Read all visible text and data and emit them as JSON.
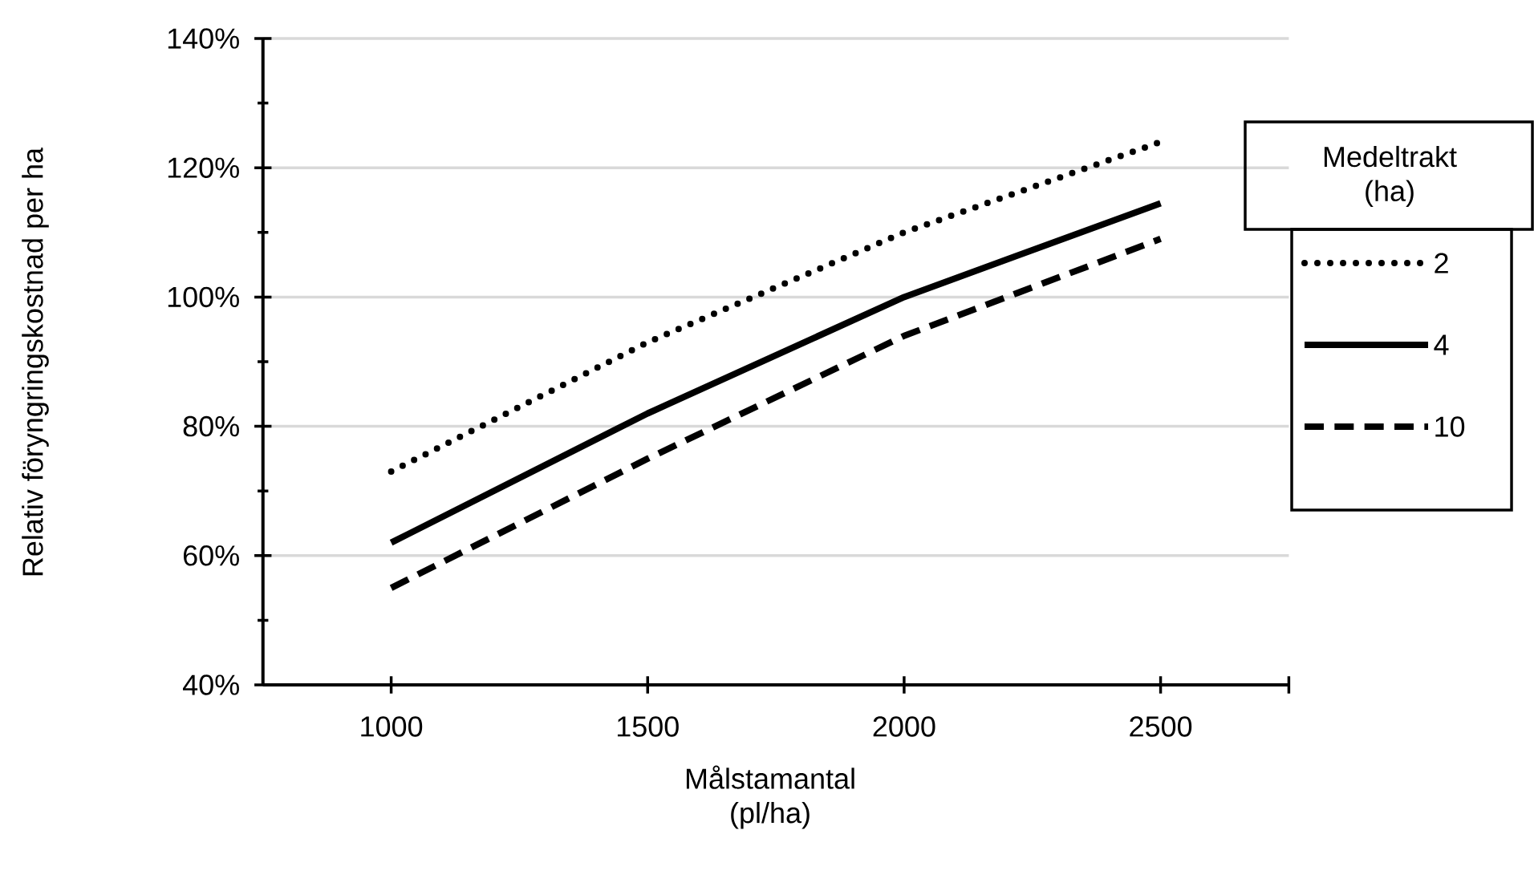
{
  "chart_data": {
    "type": "line",
    "xlabel": "Målstamantal (pl/ha)",
    "ylabel": "Relativ föryngringskostnad per ha",
    "legend_title": "Medeltrakt (ha)",
    "legend": "right",
    "grid": "y",
    "marker": "none",
    "x": [
      1000,
      1500,
      2000,
      2500
    ],
    "xlim": [
      750,
      2750
    ],
    "xticks": [
      1000,
      1500,
      2000,
      2500,
      {
        "value": 2750,
        "label": null
      }
    ],
    "ylim": [
      40,
      140
    ],
    "yticks": [
      {
        "value": 40,
        "label": "40%"
      },
      {
        "value": 50,
        "label": null
      },
      {
        "value": 60,
        "label": "60%"
      },
      {
        "value": 70,
        "label": null
      },
      {
        "value": 80,
        "label": "80%"
      },
      {
        "value": 90,
        "label": null
      },
      {
        "value": 100,
        "label": "100%"
      },
      {
        "value": 110,
        "label": null
      },
      {
        "value": 120,
        "label": "120%"
      },
      {
        "value": 130,
        "label": null
      },
      {
        "value": 140,
        "label": "140%"
      }
    ],
    "series": [
      {
        "name": "2",
        "color": "#000000",
        "line_style": "dotted",
        "values": [
          73,
          93,
          110,
          124
        ]
      },
      {
        "name": "4",
        "color": "#000000",
        "line_style": "solid",
        "values": [
          62,
          82,
          100,
          114.5
        ]
      },
      {
        "name": "10",
        "color": "#000000",
        "line_style": "dashed",
        "values": [
          55,
          75,
          94,
          109
        ]
      }
    ]
  }
}
